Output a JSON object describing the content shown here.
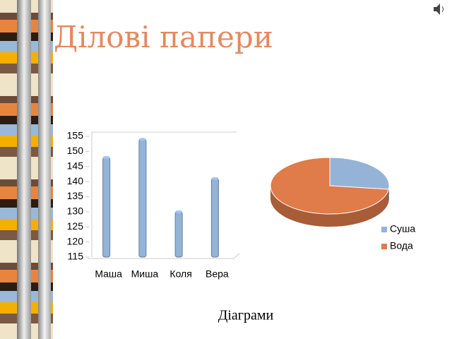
{
  "title": "Ділові папери",
  "caption": "Діаграми",
  "chart_data": [
    {
      "type": "bar",
      "categories": [
        "Маша",
        "Миша",
        "Коля",
        "Вера"
      ],
      "values": [
        148,
        154,
        130,
        141
      ],
      "color": "#95b3d7",
      "ylim": [
        115,
        155
      ],
      "yticks": [
        115,
        120,
        125,
        130,
        135,
        140,
        145,
        150,
        155
      ]
    },
    {
      "type": "pie",
      "categories": [
        "Суша",
        "Вода"
      ],
      "values": [
        27,
        73
      ],
      "colors": [
        "#95b3d7",
        "#e07b4a"
      ],
      "legend": "right"
    }
  ]
}
